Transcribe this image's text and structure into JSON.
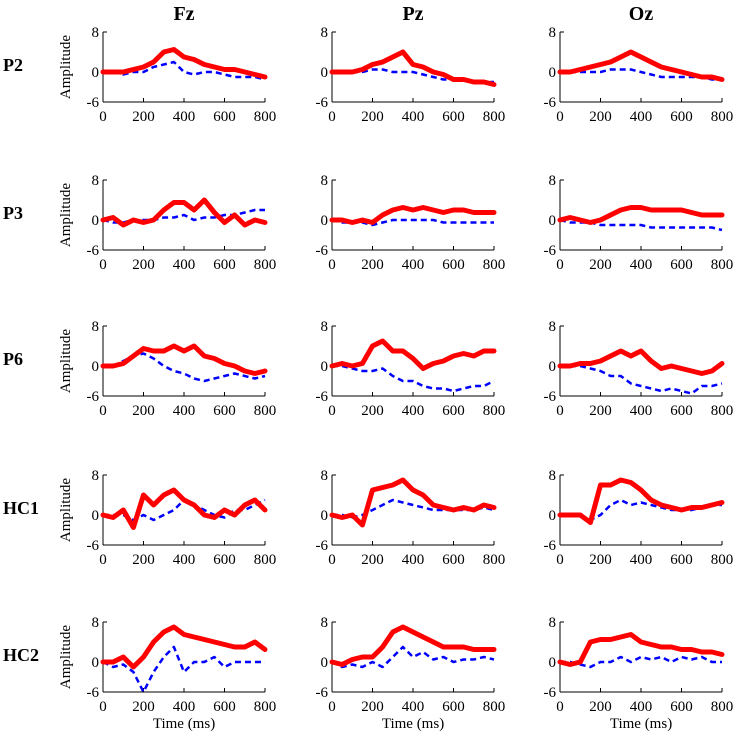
{
  "chart_data": {
    "type": "line",
    "title": "",
    "columns": [
      "Fz",
      "Pz",
      "Oz"
    ],
    "rows": [
      "P2",
      "P3",
      "P6",
      "HC1",
      "HC2"
    ],
    "xlabel": "Time (ms)",
    "ylabel": "Amplitude",
    "xlim": [
      0,
      800
    ],
    "ylim": [
      -6,
      8
    ],
    "xticks": [
      0,
      200,
      400,
      600,
      800
    ],
    "yticks": [
      8,
      0,
      -6
    ],
    "series_styles": [
      {
        "name": "solid",
        "color": "#ff0000",
        "style": "solid"
      },
      {
        "name": "dashed",
        "color": "#0000ff",
        "style": "dashed"
      }
    ],
    "x": [
      0,
      50,
      100,
      150,
      200,
      250,
      300,
      350,
      400,
      450,
      500,
      550,
      600,
      650,
      700,
      750,
      800
    ],
    "panels": [
      [
        {
          "solid": [
            0,
            0,
            0,
            0.5,
            1,
            2,
            4,
            4.5,
            3,
            2.5,
            1.5,
            1,
            0.5,
            0.5,
            0,
            -0.5,
            -1
          ],
          "dashed": [
            0,
            0,
            -0.5,
            0,
            0,
            1,
            1.5,
            2,
            0,
            -0.5,
            0,
            0,
            -0.5,
            -1,
            -1,
            -1,
            -1.5
          ]
        },
        {
          "solid": [
            0,
            0,
            0,
            0.5,
            1.5,
            2,
            3,
            4,
            1.5,
            1,
            0,
            -0.5,
            -1.5,
            -1.5,
            -2,
            -2,
            -2.5
          ],
          "dashed": [
            0,
            0,
            0,
            0,
            0.5,
            0.5,
            0,
            0,
            0,
            -0.5,
            -1,
            -1.5,
            -1.5,
            -1.5,
            -2,
            -2,
            -2
          ]
        },
        {
          "solid": [
            0,
            0,
            0.5,
            1,
            1.5,
            2,
            3,
            4,
            3,
            2,
            1,
            0.5,
            0,
            -0.5,
            -1,
            -1,
            -1.5
          ],
          "dashed": [
            0,
            0,
            0,
            0,
            0,
            0.5,
            0.5,
            0.5,
            0,
            -0.5,
            -1,
            -1,
            -1,
            -1,
            -1,
            -1.5,
            -1.5
          ]
        }
      ],
      [
        {
          "solid": [
            0,
            0.5,
            -1,
            0,
            -0.5,
            0,
            2,
            3.5,
            3.5,
            2,
            4,
            1.5,
            -0.5,
            1,
            -1,
            0,
            -0.5
          ],
          "dashed": [
            0,
            -0.5,
            -0.5,
            0,
            0,
            0,
            0.5,
            0.5,
            1,
            0,
            0.5,
            0.5,
            1,
            1,
            1.5,
            2,
            2
          ]
        },
        {
          "solid": [
            0,
            0,
            -0.5,
            0,
            -0.5,
            1,
            2,
            2.5,
            2,
            2.5,
            2,
            1.5,
            2,
            2,
            1.5,
            1.5,
            1.5
          ],
          "dashed": [
            0,
            -0.5,
            -0.5,
            -0.5,
            -1,
            -0.5,
            0,
            0,
            0,
            0,
            0,
            -0.5,
            -0.5,
            -0.5,
            -0.5,
            -0.5,
            -0.5
          ]
        },
        {
          "solid": [
            0,
            0.5,
            0,
            -0.5,
            0,
            1,
            2,
            2.5,
            2.5,
            2,
            2,
            2,
            2,
            1.5,
            1,
            1,
            1
          ],
          "dashed": [
            0,
            -0.5,
            -0.5,
            -0.5,
            -1,
            -1,
            -1,
            -1,
            -1,
            -1.5,
            -1.5,
            -1.5,
            -1.5,
            -1.5,
            -1.5,
            -1.5,
            -2
          ]
        }
      ],
      [
        {
          "solid": [
            0,
            0,
            0.5,
            2,
            3.5,
            3,
            3,
            4,
            3,
            4,
            2,
            1.5,
            0.5,
            0,
            -1,
            -1.5,
            -1
          ],
          "dashed": [
            0,
            0,
            1,
            2,
            2.5,
            1.5,
            0,
            -1,
            -1.5,
            -2.5,
            -3,
            -2.5,
            -2,
            -1.5,
            -2,
            -2.5,
            -2
          ]
        },
        {
          "solid": [
            0,
            0.5,
            0,
            0.5,
            4,
            5,
            3,
            3,
            1.5,
            -0.5,
            0.5,
            1,
            2,
            2.5,
            2,
            3,
            3
          ],
          "dashed": [
            0,
            0,
            -0.5,
            -1,
            -1,
            -0.5,
            -2,
            -3,
            -3,
            -4,
            -4.5,
            -4.5,
            -5,
            -4.5,
            -4,
            -4,
            -3
          ]
        },
        {
          "solid": [
            0,
            0,
            0.5,
            0.5,
            1,
            2,
            3,
            2,
            3,
            1,
            -0.5,
            0,
            -0.5,
            -1,
            -1.5,
            -1,
            0.5
          ],
          "dashed": [
            0,
            0,
            0,
            -0.5,
            -1,
            -2,
            -2,
            -3.5,
            -4,
            -4.5,
            -5,
            -4.5,
            -5,
            -5.5,
            -4,
            -4,
            -3.5
          ]
        }
      ],
      [
        {
          "solid": [
            0,
            -0.5,
            1,
            -2.5,
            4,
            2,
            4,
            5,
            3,
            2,
            0,
            -0.5,
            1,
            0,
            2,
            3,
            1
          ],
          "dashed": [
            0,
            0,
            0,
            -1,
            0,
            -1,
            0,
            1,
            3,
            2,
            1,
            0,
            -0.5,
            1,
            1,
            2,
            3
          ]
        },
        {
          "solid": [
            0,
            -0.5,
            0,
            -2,
            5,
            5.5,
            6,
            7,
            5,
            4,
            2,
            1.5,
            1,
            1.5,
            1,
            2,
            1.5
          ],
          "dashed": [
            0,
            0,
            -0.5,
            0,
            1,
            2,
            3,
            2.5,
            2,
            1.5,
            1,
            1,
            1,
            1,
            1,
            1.5,
            1
          ]
        },
        {
          "solid": [
            0,
            0,
            0,
            -1.5,
            6,
            6,
            7,
            6.5,
            5,
            3,
            2,
            1.5,
            1,
            1.5,
            1.5,
            2,
            2.5
          ],
          "dashed": [
            0,
            0,
            0,
            -1,
            0,
            2,
            3,
            2,
            2.5,
            2,
            1.5,
            1,
            1,
            1,
            1.5,
            2,
            2
          ]
        }
      ],
      [
        {
          "solid": [
            0,
            0,
            1,
            -1,
            1,
            4,
            6,
            7,
            5.5,
            5,
            4.5,
            4,
            3.5,
            3,
            3,
            4,
            2.5
          ],
          "dashed": [
            0,
            -1,
            -0.5,
            -2,
            -6,
            -2,
            1,
            3,
            -2,
            0,
            0,
            1,
            -1,
            0,
            0,
            0,
            0
          ]
        },
        {
          "solid": [
            0,
            -0.5,
            0.5,
            1,
            1,
            3,
            6,
            7,
            6,
            5,
            4,
            3,
            3,
            3,
            2.5,
            2.5,
            2.5
          ],
          "dashed": [
            0,
            -1,
            -0.5,
            -1,
            0,
            -1,
            1,
            3,
            1,
            2,
            0.5,
            1,
            0,
            0.5,
            0.5,
            1,
            0.5
          ]
        },
        {
          "solid": [
            0,
            -0.5,
            0,
            4,
            4.5,
            4.5,
            5,
            5.5,
            4,
            3.5,
            3,
            3,
            2.5,
            2.5,
            2,
            2,
            1.5
          ],
          "dashed": [
            0,
            0,
            -0.5,
            -1,
            0,
            0,
            1,
            0,
            1,
            0.5,
            1,
            0,
            1,
            0.5,
            1,
            0,
            0
          ]
        }
      ]
    ]
  }
}
